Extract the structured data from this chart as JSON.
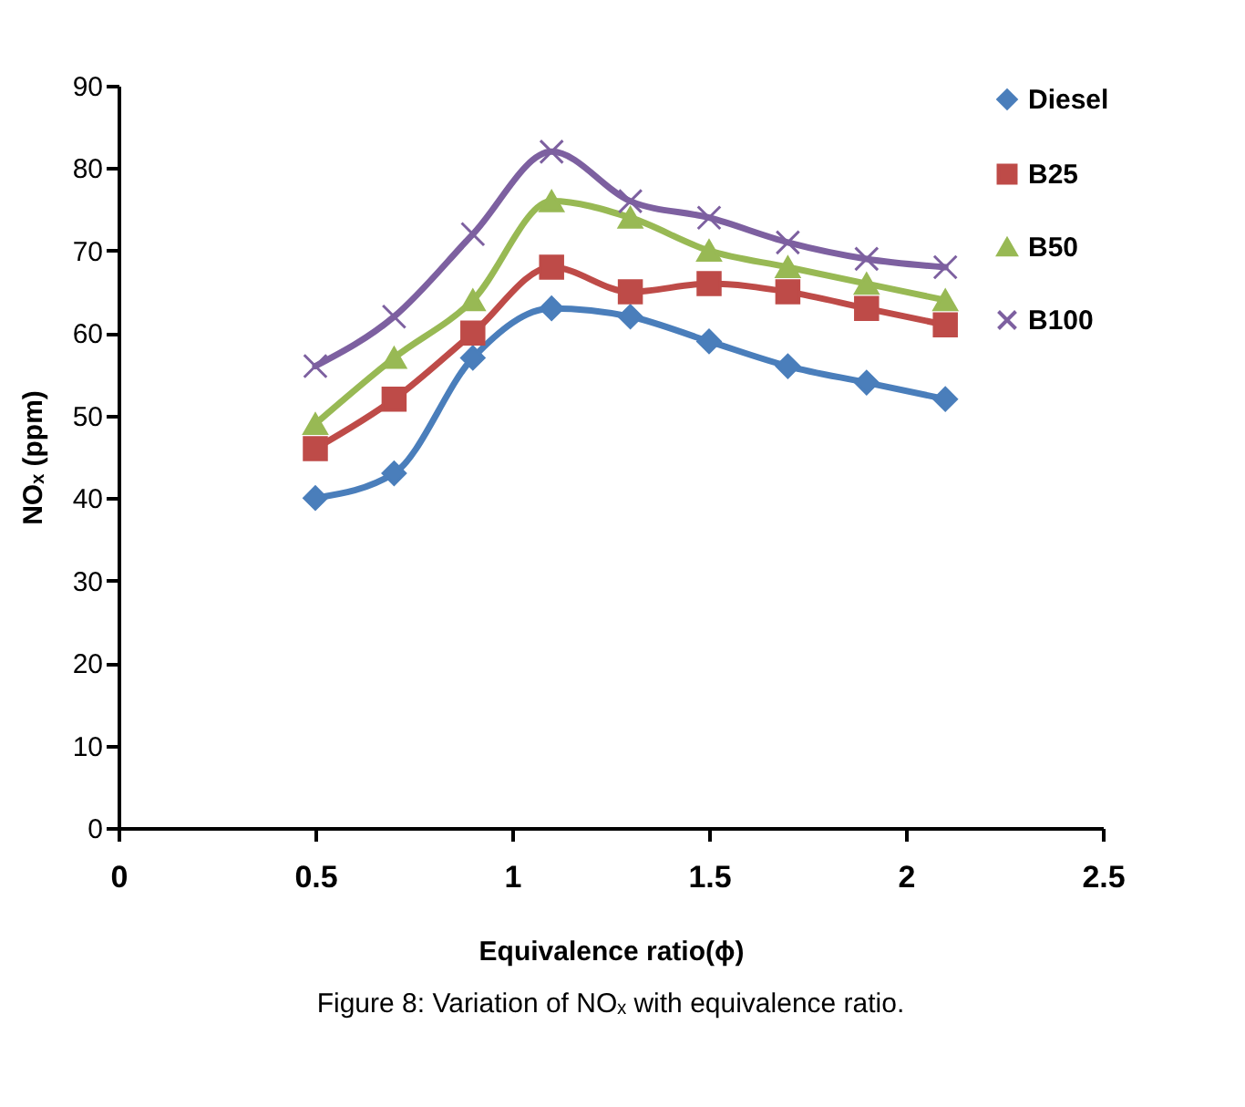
{
  "chart_data": {
    "type": "line",
    "xlabel": "Equivalence ratio(ϕ)",
    "ylabel": "NOₓ (ppm)",
    "annotations": [
      "Figure 8: Variation of NOₓ with equivalence ratio."
    ],
    "x": [
      0.5,
      0.7,
      0.9,
      1.1,
      1.3,
      1.5,
      1.7,
      1.9,
      2.1
    ],
    "series": [
      {
        "name": "Diesel",
        "color": "#4a7ebb",
        "marker": "diamond",
        "values": [
          40,
          43,
          57,
          63,
          62,
          59,
          56,
          54,
          52
        ]
      },
      {
        "name": "B25",
        "color": "#be4b48",
        "marker": "square",
        "values": [
          46,
          52,
          60,
          68,
          65,
          66,
          65,
          63,
          61
        ]
      },
      {
        "name": "B50",
        "color": "#98b954",
        "marker": "triangle",
        "values": [
          49,
          57,
          64,
          76,
          74,
          70,
          68,
          66,
          64
        ]
      },
      {
        "name": "B100",
        "color": "#7d60a0",
        "marker": "cross",
        "values": [
          56,
          62,
          72,
          82,
          76,
          74,
          71,
          69,
          68
        ]
      }
    ],
    "xlim": [
      0,
      2.5
    ],
    "xticks": [
      0,
      0.5,
      1,
      1.5,
      2,
      2.5
    ],
    "ylim": [
      0,
      90
    ],
    "yticks": [
      0,
      10,
      20,
      30,
      40,
      50,
      60,
      70,
      80,
      90
    ],
    "grid": false,
    "legend": "right",
    "line_style": "solid"
  }
}
